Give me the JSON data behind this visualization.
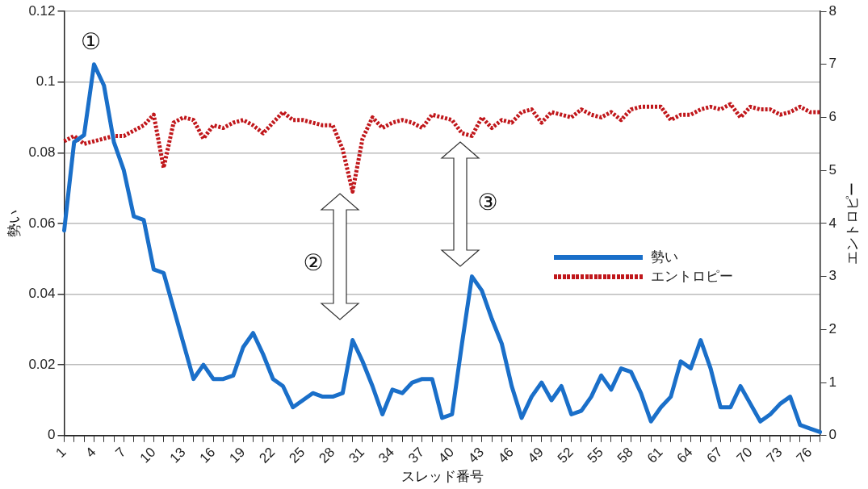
{
  "chart_data": {
    "type": "line",
    "xlabel": "スレッド番号",
    "ylabel": "勢い",
    "y2label": "エントロピー",
    "categories": [
      "1",
      null,
      null,
      "4",
      null,
      null,
      "7",
      null,
      null,
      "10",
      null,
      null,
      "13",
      null,
      null,
      "16",
      null,
      null,
      "19",
      null,
      null,
      "22",
      null,
      null,
      "25",
      null,
      null,
      "28",
      null,
      null,
      "31",
      null,
      null,
      "34",
      null,
      null,
      "37",
      null,
      null,
      "40",
      null,
      null,
      "43",
      null,
      null,
      "46",
      null,
      null,
      "49",
      null,
      null,
      "52",
      null,
      null,
      "55",
      null,
      null,
      "58",
      null,
      null,
      "61",
      null,
      null,
      "64",
      null,
      null,
      "67",
      null,
      null,
      "70",
      null,
      null,
      "73",
      null,
      null,
      "76",
      null
    ],
    "series": [
      {
        "name": "勢い",
        "color": "#1a6fc9",
        "line_style": "solid",
        "values": [
          0.058,
          0.083,
          0.085,
          0.105,
          0.099,
          0.083,
          0.075,
          0.062,
          0.061,
          0.047,
          0.046,
          0.036,
          0.026,
          0.016,
          0.02,
          0.016,
          0.016,
          0.017,
          0.025,
          0.029,
          0.023,
          0.016,
          0.014,
          0.008,
          0.01,
          0.012,
          0.011,
          0.011,
          0.012,
          0.027,
          0.021,
          0.014,
          0.006,
          0.013,
          0.012,
          0.015,
          0.016,
          0.016,
          0.005,
          0.006,
          0.026,
          0.045,
          0.041,
          0.033,
          0.026,
          0.014,
          0.005,
          0.011,
          0.015,
          0.01,
          0.014,
          0.006,
          0.007,
          0.011,
          0.017,
          0.013,
          0.019,
          0.018,
          0.012,
          0.004,
          0.008,
          0.011,
          0.021,
          0.019,
          0.027,
          0.019,
          0.008,
          0.008,
          0.014,
          0.009,
          0.004,
          0.006,
          0.009,
          0.011,
          0.003,
          0.002,
          0.001
        ]
      },
      {
        "name": "エントロピー",
        "color": "#c0171b",
        "axis": "y2",
        "line_style": "dotted",
        "values": [
          5.55,
          5.65,
          5.5,
          5.55,
          5.6,
          5.65,
          5.65,
          5.75,
          5.85,
          6.05,
          5.05,
          5.9,
          6.0,
          5.95,
          5.6,
          5.85,
          5.8,
          5.9,
          5.95,
          5.85,
          5.7,
          5.9,
          6.1,
          5.95,
          5.95,
          5.9,
          5.85,
          5.85,
          5.4,
          4.6,
          5.6,
          6.0,
          5.8,
          5.9,
          5.95,
          5.9,
          5.8,
          6.05,
          6.0,
          5.95,
          5.7,
          5.65,
          6.0,
          5.8,
          5.95,
          5.9,
          6.1,
          6.15,
          5.9,
          6.1,
          6.05,
          6.0,
          6.15,
          6.05,
          6.0,
          6.1,
          5.95,
          6.15,
          6.2,
          6.2,
          6.2,
          5.95,
          6.05,
          6.05,
          6.15,
          6.2,
          6.15,
          6.25,
          6.0,
          6.2,
          6.15,
          6.15,
          6.05,
          6.1,
          6.2,
          6.1,
          6.1
        ]
      }
    ],
    "ylim": [
      0,
      0.12
    ],
    "yticks": [
      0,
      0.02,
      0.04,
      0.06,
      0.08,
      0.1,
      0.12
    ],
    "y2lim": [
      0,
      8
    ],
    "y2ticks": [
      0,
      1,
      2,
      3,
      4,
      5,
      6,
      7,
      8
    ],
    "grid": "y",
    "legend": "right",
    "marker": "none",
    "annotations": [
      {
        "text": "①",
        "x": "4",
        "y": 0.105
      },
      "②",
      "③"
    ]
  }
}
